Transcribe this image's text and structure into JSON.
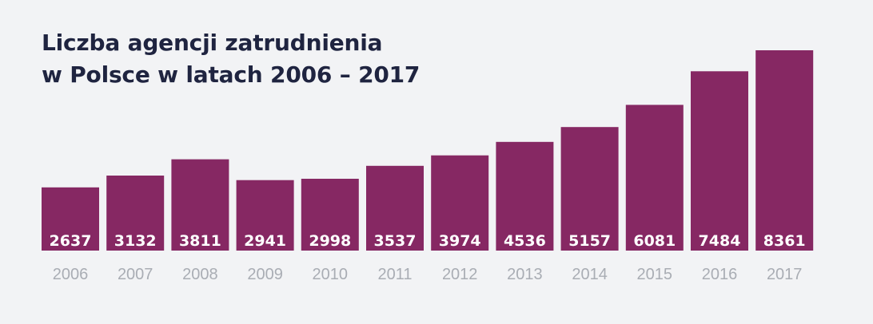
{
  "chart_data": {
    "type": "bar",
    "title_lines": [
      "Liczba agencji zatrudnienia",
      "w Polsce w latach 2006 – 2017"
    ],
    "categories": [
      "2006",
      "2007",
      "2008",
      "2009",
      "2010",
      "2011",
      "2012",
      "2013",
      "2014",
      "2015",
      "2016",
      "2017"
    ],
    "values": [
      2637,
      3132,
      3811,
      2941,
      2998,
      3537,
      3974,
      4536,
      5157,
      6081,
      7484,
      8361
    ],
    "data_labels": [
      "2637",
      "3132",
      "3811",
      "2941",
      "2998",
      "3537",
      "3974",
      "4536",
      "5157",
      "6081",
      "7484",
      "8361"
    ],
    "ylim": [
      0,
      8361
    ],
    "grid": false,
    "legend": "none",
    "colors": {
      "bar": "#862863",
      "background": "#f2f3f5",
      "title": "#1f2440",
      "bar_label": "#ffffff",
      "tick_label": "#a9adb4"
    }
  }
}
